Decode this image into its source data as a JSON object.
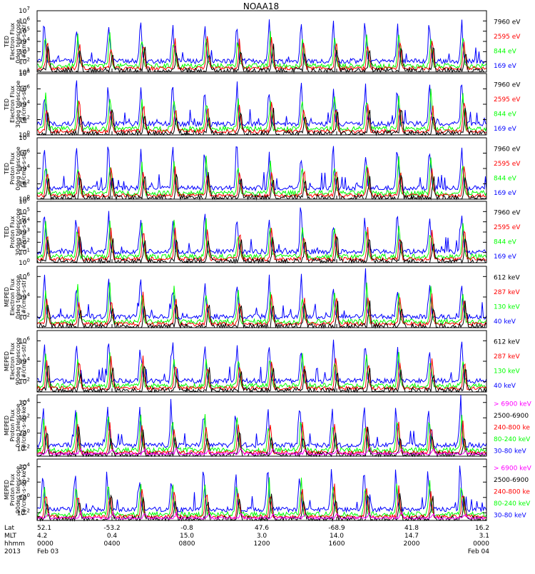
{
  "title": "NOAA18",
  "panels": [
    {
      "ylabel": [
        "TED",
        "Electron Flux",
        "0deg telescope",
        "[#/cm2-s-str]"
      ],
      "ytick_exps": [
        "1",
        "2",
        "3",
        "4",
        "5",
        "6",
        "7"
      ],
      "ytick_base_exp": 1,
      "ytick_top_exp": 7,
      "legend": [
        {
          "label": "7960 eV",
          "color": "#000000"
        },
        {
          "label": "2595 eV",
          "color": "#ff0000"
        },
        {
          "label": "844 eV",
          "color": "#00ff00"
        },
        {
          "label": "169 eV",
          "color": "#0000ff"
        }
      ]
    },
    {
      "ylabel": [
        "TED",
        "Electron Flux",
        "30deg telescope",
        "[#/cm2-s-str]"
      ],
      "ytick_exps": [
        "0",
        "2",
        "4",
        "6",
        "8"
      ],
      "ytick_base_exp": 0,
      "ytick_top_exp": 8,
      "legend": [
        {
          "label": "7960 eV",
          "color": "#000000"
        },
        {
          "label": "2595 eV",
          "color": "#ff0000"
        },
        {
          "label": "844 eV",
          "color": "#00ff00"
        },
        {
          "label": "169 eV",
          "color": "#0000ff"
        }
      ]
    },
    {
      "ylabel": [
        "TED",
        "Proton Flux",
        "0deg telescope",
        "[#/cm2-s-str]"
      ],
      "ytick_exps": [
        "0",
        "2",
        "4",
        "6",
        "8"
      ],
      "ytick_base_exp": 0,
      "ytick_top_exp": 8,
      "legend": [
        {
          "label": "7960 eV",
          "color": "#000000"
        },
        {
          "label": "2595 eV",
          "color": "#ff0000"
        },
        {
          "label": "844 eV",
          "color": "#00ff00"
        },
        {
          "label": "169 eV",
          "color": "#0000ff"
        }
      ]
    },
    {
      "ylabel": [
        "TED",
        "Proton Flux",
        "30deg telescope",
        "[#/cm2-s-str]"
      ],
      "ytick_exps": [
        "0",
        "1",
        "2",
        "3",
        "4",
        "5",
        "6"
      ],
      "ytick_base_exp": 0,
      "ytick_top_exp": 6,
      "legend": [
        {
          "label": "7960 eV",
          "color": "#000000"
        },
        {
          "label": "2595 eV",
          "color": "#ff0000"
        },
        {
          "label": "844 eV",
          "color": "#00ff00"
        },
        {
          "label": "169 eV",
          "color": "#0000ff"
        }
      ]
    },
    {
      "ylabel": [
        "MEPED",
        "Electron Flux",
        "0deg telescope",
        "[#/cm2-s-str]"
      ],
      "ytick_exps": [
        "2",
        "4",
        "6"
      ],
      "ytick_base_exp": 1,
      "ytick_top_exp": 7,
      "legend": [
        {
          "label": "612 keV",
          "color": "#000000"
        },
        {
          "label": "287 keV",
          "color": "#ff0000"
        },
        {
          "label": "130 keV",
          "color": "#00ff00"
        },
        {
          "label": "40 keV",
          "color": "#0000ff"
        }
      ]
    },
    {
      "ylabel": [
        "MEPED",
        "Electron Flux",
        "90deg telescope",
        "[#/cm2-s-str]"
      ],
      "ytick_exps": [
        "2",
        "4",
        "6"
      ],
      "ytick_base_exp": 1,
      "ytick_top_exp": 7,
      "legend": [
        {
          "label": "612 keV",
          "color": "#000000"
        },
        {
          "label": "287 keV",
          "color": "#ff0000"
        },
        {
          "label": "130 keV",
          "color": "#00ff00"
        },
        {
          "label": "40 keV",
          "color": "#0000ff"
        }
      ]
    },
    {
      "ylabel": [
        "MEPED",
        "Proton Flux",
        "0deg telescope",
        "[#/cm2-s-str-keV]"
      ],
      "ytick_exps": [
        "-2",
        "0",
        "2",
        "4"
      ],
      "ytick_base_exp": -3,
      "ytick_top_exp": 5,
      "legend": [
        {
          "label": "> 6900 keV",
          "color": "#ff00ff"
        },
        {
          "label": "2500-6900",
          "color": "#000000"
        },
        {
          "label": "240-800 ke",
          "color": "#ff0000"
        },
        {
          "label": "80-240 keV",
          "color": "#00ff00"
        },
        {
          "label": "30-80 keV",
          "color": "#0000ff"
        }
      ]
    },
    {
      "ylabel": [
        "MEPED",
        "Proton Flux",
        "90deg telescope",
        "[#/cm2-s-str-keV]"
      ],
      "ytick_exps": [
        "-2",
        "0",
        "2",
        "4"
      ],
      "ytick_base_exp": -3,
      "ytick_top_exp": 5,
      "legend": [
        {
          "label": "> 6900 keV",
          "color": "#ff00ff"
        },
        {
          "label": "2500-6900",
          "color": "#000000"
        },
        {
          "label": "240-800 ke",
          "color": "#ff0000"
        },
        {
          "label": "80-240 keV",
          "color": "#00ff00"
        },
        {
          "label": "30-80 keV",
          "color": "#0000ff"
        }
      ]
    }
  ],
  "xaxis": {
    "row_labels": [
      "Lat",
      "MLT",
      "hhmm",
      "2013"
    ],
    "ticks": [
      {
        "lat": "52.1",
        "mlt": "4.2",
        "hhmm": "0000",
        "date": "Feb 03"
      },
      {
        "lat": "-53.2",
        "mlt": "0.4",
        "hhmm": "0400",
        "date": ""
      },
      {
        "lat": "-0.8",
        "mlt": "15.0",
        "hhmm": "0800",
        "date": ""
      },
      {
        "lat": "47.6",
        "mlt": "3.0",
        "hhmm": "1200",
        "date": ""
      },
      {
        "lat": "-68.9",
        "mlt": "14.0",
        "hhmm": "1600",
        "date": ""
      },
      {
        "lat": "41.8",
        "mlt": "14.7",
        "hhmm": "2000",
        "date": ""
      },
      {
        "lat": "16.2",
        "mlt": "3.1",
        "hhmm": "0000",
        "date": "Feb 04"
      }
    ]
  },
  "chart_data": {
    "type": "line",
    "title": "NOAA18",
    "x_unit": "hhmm (UT), 2013 Feb 03 - Feb 04",
    "x_range": [
      "2013-02-03 00:00",
      "2013-02-04 00:00"
    ],
    "yscale": "log",
    "note_series": "flux time series per energy channel; traces are spiky orbital passes (~14 per day)",
    "panels": [
      {
        "ylim_exp": [
          1,
          7
        ],
        "series": [
          "7960 eV",
          "2595 eV",
          "844 eV",
          "169 eV"
        ]
      },
      {
        "ylim_exp": [
          0,
          8
        ],
        "series": [
          "7960 eV",
          "2595 eV",
          "844 eV",
          "169 eV"
        ]
      },
      {
        "ylim_exp": [
          0,
          8
        ],
        "series": [
          "7960 eV",
          "2595 eV",
          "844 eV",
          "169 eV"
        ]
      },
      {
        "ylim_exp": [
          0,
          6
        ],
        "series": [
          "7960 eV",
          "2595 eV",
          "844 eV",
          "169 eV"
        ]
      },
      {
        "ylim_exp": [
          1,
          7
        ],
        "series": [
          "612 keV",
          "287 keV",
          "130 keV",
          "40 keV"
        ]
      },
      {
        "ylim_exp": [
          1,
          7
        ],
        "series": [
          "612 keV",
          "287 keV",
          "130 keV",
          "40 keV"
        ]
      },
      {
        "ylim_exp": [
          -3,
          5
        ],
        "series": [
          "> 6900 keV",
          "2500-6900",
          "240-800 ke",
          "80-240 keV",
          "30-80 keV"
        ]
      },
      {
        "ylim_exp": [
          -3,
          5
        ],
        "series": [
          "> 6900 keV",
          "2500-6900",
          "240-800 ke",
          "80-240 keV",
          "30-80 keV"
        ]
      }
    ]
  }
}
